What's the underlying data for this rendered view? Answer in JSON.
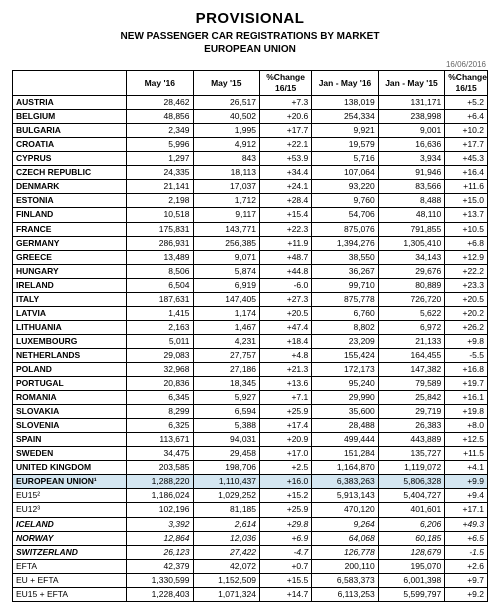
{
  "header": {
    "title": "PROVISIONAL",
    "subtitle_line1": "NEW PASSENGER CAR REGISTRATIONS BY MARKET",
    "subtitle_line2": "EUROPEAN UNION",
    "date": "16/06/2016"
  },
  "table": {
    "columns": [
      "",
      "May '16",
      "May '15",
      "%Change 16/15",
      "Jan - May '16",
      "Jan - May '15",
      "%Change 16/15"
    ],
    "rows": [
      {
        "name": "AUSTRIA",
        "may16": "28,462",
        "may15": "26,517",
        "pchm": "+7.3",
        "jm16": "138,019",
        "jm15": "131,171",
        "pchjm": "+5.2"
      },
      {
        "name": "BELGIUM",
        "may16": "48,856",
        "may15": "40,502",
        "pchm": "+20.6",
        "jm16": "254,334",
        "jm15": "238,998",
        "pchjm": "+6.4"
      },
      {
        "name": "BULGARIA",
        "may16": "2,349",
        "may15": "1,995",
        "pchm": "+17.7",
        "jm16": "9,921",
        "jm15": "9,001",
        "pchjm": "+10.2"
      },
      {
        "name": "CROATIA",
        "may16": "5,996",
        "may15": "4,912",
        "pchm": "+22.1",
        "jm16": "19,579",
        "jm15": "16,636",
        "pchjm": "+17.7"
      },
      {
        "name": "CYPRUS",
        "may16": "1,297",
        "may15": "843",
        "pchm": "+53.9",
        "jm16": "5,716",
        "jm15": "3,934",
        "pchjm": "+45.3"
      },
      {
        "name": "CZECH REPUBLIC",
        "may16": "24,335",
        "may15": "18,113",
        "pchm": "+34.4",
        "jm16": "107,064",
        "jm15": "91,946",
        "pchjm": "+16.4"
      },
      {
        "name": "DENMARK",
        "may16": "21,141",
        "may15": "17,037",
        "pchm": "+24.1",
        "jm16": "93,220",
        "jm15": "83,566",
        "pchjm": "+11.6"
      },
      {
        "name": "ESTONIA",
        "may16": "2,198",
        "may15": "1,712",
        "pchm": "+28.4",
        "jm16": "9,760",
        "jm15": "8,488",
        "pchjm": "+15.0"
      },
      {
        "name": "FINLAND",
        "may16": "10,518",
        "may15": "9,117",
        "pchm": "+15.4",
        "jm16": "54,706",
        "jm15": "48,110",
        "pchjm": "+13.7"
      },
      {
        "name": "FRANCE",
        "may16": "175,831",
        "may15": "143,771",
        "pchm": "+22.3",
        "jm16": "875,076",
        "jm15": "791,855",
        "pchjm": "+10.5"
      },
      {
        "name": "GERMANY",
        "may16": "286,931",
        "may15": "256,385",
        "pchm": "+11.9",
        "jm16": "1,394,276",
        "jm15": "1,305,410",
        "pchjm": "+6.8"
      },
      {
        "name": "GREECE",
        "may16": "13,489",
        "may15": "9,071",
        "pchm": "+48.7",
        "jm16": "38,550",
        "jm15": "34,143",
        "pchjm": "+12.9"
      },
      {
        "name": "HUNGARY",
        "may16": "8,506",
        "may15": "5,874",
        "pchm": "+44.8",
        "jm16": "36,267",
        "jm15": "29,676",
        "pchjm": "+22.2"
      },
      {
        "name": "IRELAND",
        "may16": "6,504",
        "may15": "6,919",
        "pchm": "-6.0",
        "jm16": "99,710",
        "jm15": "80,889",
        "pchjm": "+23.3"
      },
      {
        "name": "ITALY",
        "may16": "187,631",
        "may15": "147,405",
        "pchm": "+27.3",
        "jm16": "875,778",
        "jm15": "726,720",
        "pchjm": "+20.5"
      },
      {
        "name": "LATVIA",
        "may16": "1,415",
        "may15": "1,174",
        "pchm": "+20.5",
        "jm16": "6,760",
        "jm15": "5,622",
        "pchjm": "+20.2"
      },
      {
        "name": "LITHUANIA",
        "may16": "2,163",
        "may15": "1,467",
        "pchm": "+47.4",
        "jm16": "8,802",
        "jm15": "6,972",
        "pchjm": "+26.2"
      },
      {
        "name": "LUXEMBOURG",
        "may16": "5,011",
        "may15": "4,231",
        "pchm": "+18.4",
        "jm16": "23,209",
        "jm15": "21,133",
        "pchjm": "+9.8"
      },
      {
        "name": "NETHERLANDS",
        "may16": "29,083",
        "may15": "27,757",
        "pchm": "+4.8",
        "jm16": "155,424",
        "jm15": "164,455",
        "pchjm": "-5.5"
      },
      {
        "name": "POLAND",
        "may16": "32,968",
        "may15": "27,186",
        "pchm": "+21.3",
        "jm16": "172,173",
        "jm15": "147,382",
        "pchjm": "+16.8"
      },
      {
        "name": "PORTUGAL",
        "may16": "20,836",
        "may15": "18,345",
        "pchm": "+13.6",
        "jm16": "95,240",
        "jm15": "79,589",
        "pchjm": "+19.7"
      },
      {
        "name": "ROMANIA",
        "may16": "6,345",
        "may15": "5,927",
        "pchm": "+7.1",
        "jm16": "29,990",
        "jm15": "25,842",
        "pchjm": "+16.1"
      },
      {
        "name": "SLOVAKIA",
        "may16": "8,299",
        "may15": "6,594",
        "pchm": "+25.9",
        "jm16": "35,600",
        "jm15": "29,719",
        "pchjm": "+19.8"
      },
      {
        "name": "SLOVENIA",
        "may16": "6,325",
        "may15": "5,388",
        "pchm": "+17.4",
        "jm16": "28,488",
        "jm15": "26,383",
        "pchjm": "+8.0"
      },
      {
        "name": "SPAIN",
        "may16": "113,671",
        "may15": "94,031",
        "pchm": "+20.9",
        "jm16": "499,444",
        "jm15": "443,889",
        "pchjm": "+12.5"
      },
      {
        "name": "SWEDEN",
        "may16": "34,475",
        "may15": "29,458",
        "pchm": "+17.0",
        "jm16": "151,284",
        "jm15": "135,727",
        "pchjm": "+11.5"
      },
      {
        "name": "UNITED KINGDOM",
        "may16": "203,585",
        "may15": "198,706",
        "pchm": "+2.5",
        "jm16": "1,164,870",
        "jm15": "1,119,072",
        "pchjm": "+4.1"
      }
    ],
    "eu_row": {
      "name": "EUROPEAN UNION¹",
      "may16": "1,288,220",
      "may15": "1,110,437",
      "pchm": "+16.0",
      "jm16": "6,383,263",
      "jm15": "5,806,328",
      "pchjm": "+9.9"
    },
    "summary1": [
      {
        "name": "EU15²",
        "may16": "1,186,024",
        "may15": "1,029,252",
        "pchm": "+15.2",
        "jm16": "5,913,143",
        "jm15": "5,404,727",
        "pchjm": "+9.4"
      },
      {
        "name": "EU12³",
        "may16": "102,196",
        "may15": "81,185",
        "pchm": "+25.9",
        "jm16": "470,120",
        "jm15": "401,601",
        "pchjm": "+17.1"
      }
    ],
    "italic": [
      {
        "name": "ICELAND",
        "may16": "3,392",
        "may15": "2,614",
        "pchm": "+29.8",
        "jm16": "9,264",
        "jm15": "6,206",
        "pchjm": "+49.3"
      },
      {
        "name": "NORWAY",
        "may16": "12,864",
        "may15": "12,036",
        "pchm": "+6.9",
        "jm16": "64,068",
        "jm15": "60,185",
        "pchjm": "+6.5"
      },
      {
        "name": "SWITZERLAND",
        "may16": "26,123",
        "may15": "27,422",
        "pchm": "-4.7",
        "jm16": "126,778",
        "jm15": "128,679",
        "pchjm": "-1.5"
      }
    ],
    "summary2": [
      {
        "name": "EFTA",
        "may16": "42,379",
        "may15": "42,072",
        "pchm": "+0.7",
        "jm16": "200,110",
        "jm15": "195,070",
        "pchjm": "+2.6"
      },
      {
        "name": "EU + EFTA",
        "may16": "1,330,599",
        "may15": "1,152,509",
        "pchm": "+15.5",
        "jm16": "6,583,373",
        "jm15": "6,001,398",
        "pchjm": "+9.7"
      },
      {
        "name": "EU15 + EFTA",
        "may16": "1,228,403",
        "may15": "1,071,324",
        "pchm": "+14.7",
        "jm16": "6,113,253",
        "jm15": "5,599,797",
        "pchjm": "+9.2"
      }
    ]
  }
}
